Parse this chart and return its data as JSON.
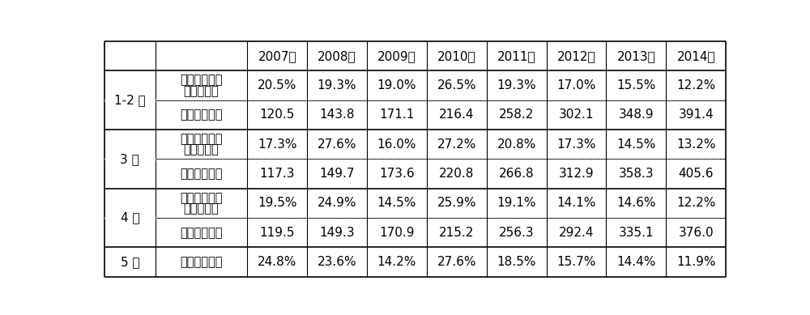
{
  "years": [
    "2007年",
    "2008年",
    "2009年",
    "2010年",
    "2011年",
    "2012年",
    "2013年",
    "2014年"
  ],
  "rows": [
    {
      "group": "1-2 月",
      "subrows": [
        {
          "label_line1": "规模以上工业",
          "label_line2": "增加値增速",
          "values": [
            "20.5%",
            "19.3%",
            "19.0%",
            "26.5%",
            "19.3%",
            "17.0%",
            "15.5%",
            "12.2%"
          ]
        },
        {
          "label_line1": "经济增长指数",
          "label_line2": "",
          "values": [
            "120.5",
            "143.8",
            "171.1",
            "216.4",
            "258.2",
            "302.1",
            "348.9",
            "391.4"
          ]
        }
      ]
    },
    {
      "group": "3 月",
      "subrows": [
        {
          "label_line1": "规模以上工业",
          "label_line2": "增加値增速",
          "values": [
            "17.3%",
            "27.6%",
            "16.0%",
            "27.2%",
            "20.8%",
            "17.3%",
            "14.5%",
            "13.2%"
          ]
        },
        {
          "label_line1": "经济增长指数",
          "label_line2": "",
          "values": [
            "117.3",
            "149.7",
            "173.6",
            "220.8",
            "266.8",
            "312.9",
            "358.3",
            "405.6"
          ]
        }
      ]
    },
    {
      "group": "4 月",
      "subrows": [
        {
          "label_line1": "规模以上工业",
          "label_line2": "增加値增速",
          "values": [
            "19.5%",
            "24.9%",
            "14.5%",
            "25.9%",
            "19.1%",
            "14.1%",
            "14.6%",
            "12.2%"
          ]
        },
        {
          "label_line1": "经济增长指数",
          "label_line2": "",
          "values": [
            "119.5",
            "149.3",
            "170.9",
            "215.2",
            "256.3",
            "292.4",
            "335.1",
            "376.0"
          ]
        }
      ]
    },
    {
      "group": "5 月",
      "subrows": [
        {
          "label_line1": "规模以上工业",
          "label_line2": "",
          "values": [
            "24.8%",
            "23.6%",
            "14.2%",
            "27.6%",
            "18.5%",
            "15.7%",
            "14.4%",
            "11.9%"
          ]
        }
      ]
    }
  ],
  "bg_color": "#ffffff",
  "line_color": "#000000",
  "text_color": "#000000",
  "font_size": 11,
  "header_font_size": 11
}
